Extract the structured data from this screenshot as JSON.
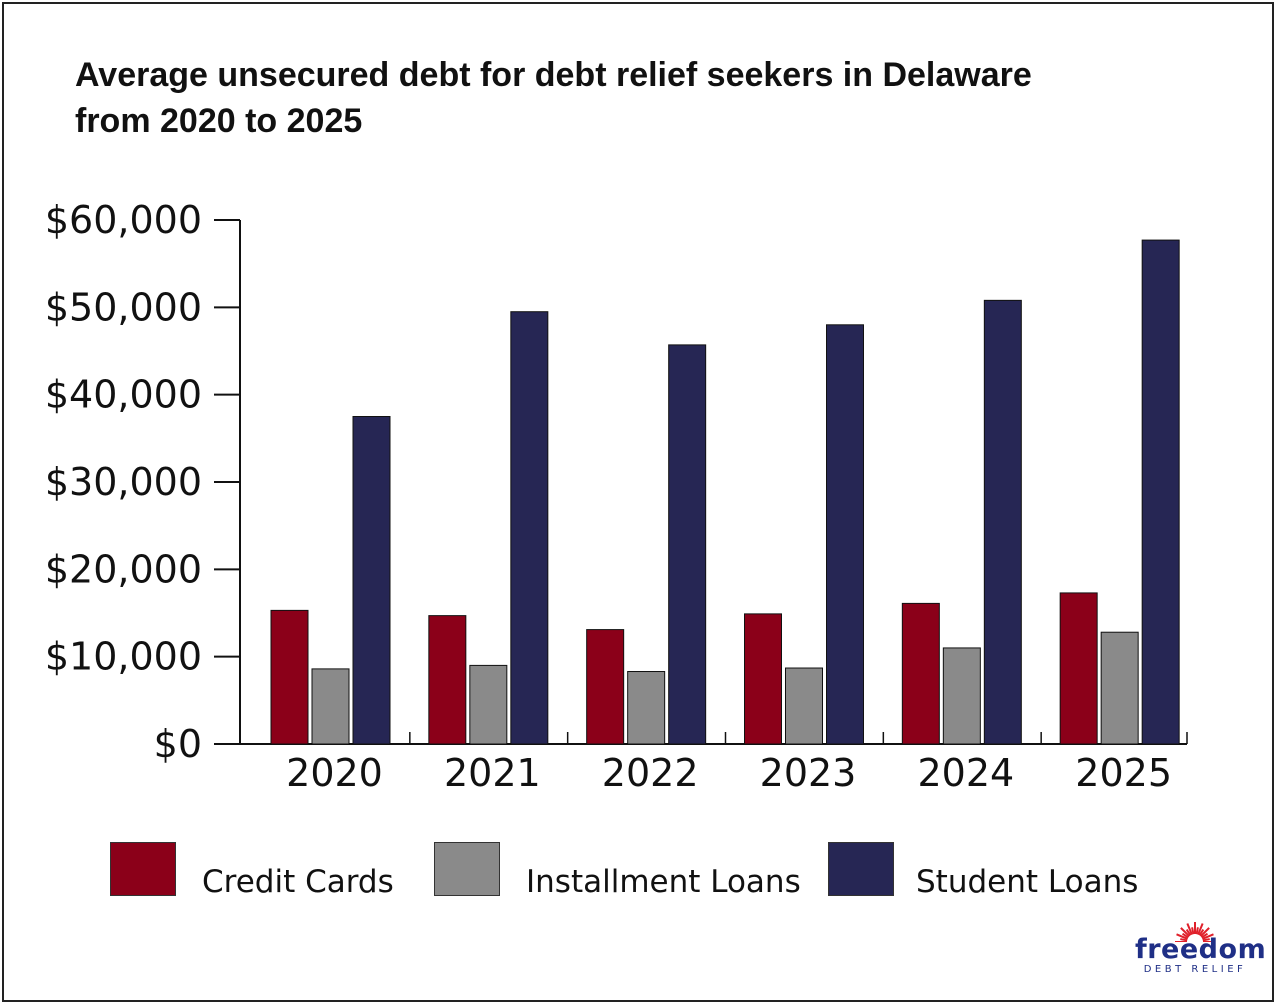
{
  "title_line1": "Average unsecured debt for debt relief seekers in Delaware",
  "title_line2": "from 2020 to 2025",
  "chart_data": {
    "type": "bar",
    "title": "Average unsecured debt for debt relief seekers in Delaware from 2020 to 2025",
    "xlabel": "",
    "ylabel": "",
    "categories": [
      "2020",
      "2021",
      "2022",
      "2023",
      "2024",
      "2025"
    ],
    "y_ticks": [
      "$0",
      "$10,000",
      "$20,000",
      "$30,000",
      "$40,000",
      "$50,000",
      "$60,000"
    ],
    "ylim": [
      0,
      60000
    ],
    "grid": false,
    "legend_position": "bottom",
    "series": [
      {
        "name": "Credit Cards",
        "color": "#8b0019",
        "values": [
          15300,
          14700,
          13100,
          14900,
          16100,
          17300
        ]
      },
      {
        "name": "Installment Loans",
        "color": "#8a8a8a",
        "values": [
          8600,
          9000,
          8300,
          8700,
          11000,
          12800
        ]
      },
      {
        "name": "Student Loans",
        "color": "#262654",
        "values": [
          37500,
          49500,
          45700,
          48000,
          50800,
          57700
        ]
      }
    ]
  },
  "logo": {
    "word": "freedom",
    "sub": "DEBT RELIEF",
    "brand_color": "#1f2f86",
    "sun_color": "#e0202a"
  }
}
